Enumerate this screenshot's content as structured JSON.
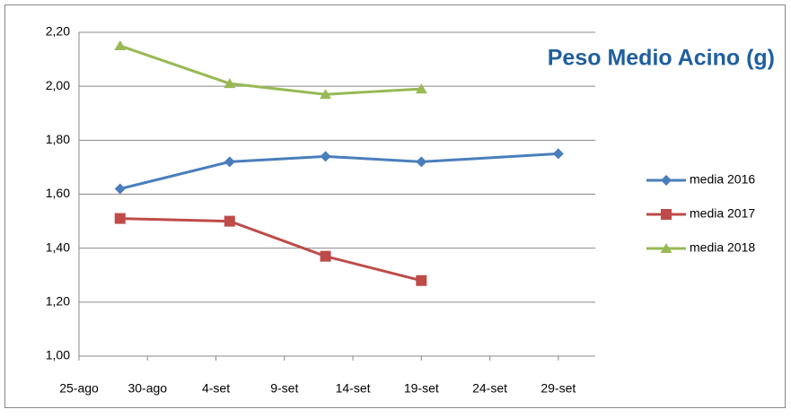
{
  "chart_data": {
    "type": "line",
    "title": "Peso Medio Acino (g)",
    "x": [
      240,
      248,
      255,
      262,
      272
    ],
    "series": [
      {
        "name": "media 2016",
        "color": "#4a7ebb",
        "marker": "diamond",
        "values": [
          1.62,
          1.72,
          1.74,
          1.72,
          1.75
        ]
      },
      {
        "name": "media 2017",
        "color": "#be4b48",
        "marker": "square",
        "values": [
          1.51,
          1.5,
          1.37,
          1.28,
          null
        ]
      },
      {
        "name": "media 2018",
        "color": "#98b954",
        "marker": "triangle",
        "values": [
          2.15,
          2.01,
          1.97,
          1.99,
          null
        ]
      }
    ],
    "xlim": [
      237,
      274.7
    ],
    "xticks": [
      {
        "value": 237,
        "label": "25-ago"
      },
      {
        "value": 242,
        "label": "30-ago"
      },
      {
        "value": 247,
        "label": "4-set"
      },
      {
        "value": 252,
        "label": "9-set"
      },
      {
        "value": 257,
        "label": "14-set"
      },
      {
        "value": 262,
        "label": "19-set"
      },
      {
        "value": 267,
        "label": "24-set"
      },
      {
        "value": 272,
        "label": "29-set"
      }
    ],
    "ylim": [
      1.0,
      2.2
    ],
    "yticks": [
      {
        "value": 1.0,
        "label": "1,00"
      },
      {
        "value": 1.2,
        "label": "1,20"
      },
      {
        "value": 1.4,
        "label": "1,40"
      },
      {
        "value": 1.6,
        "label": "1,60"
      },
      {
        "value": 1.8,
        "label": "1,80"
      },
      {
        "value": 2.0,
        "label": "2,00"
      },
      {
        "value": 2.2,
        "label": "2,20"
      }
    ],
    "grid": true,
    "legend": "right"
  }
}
